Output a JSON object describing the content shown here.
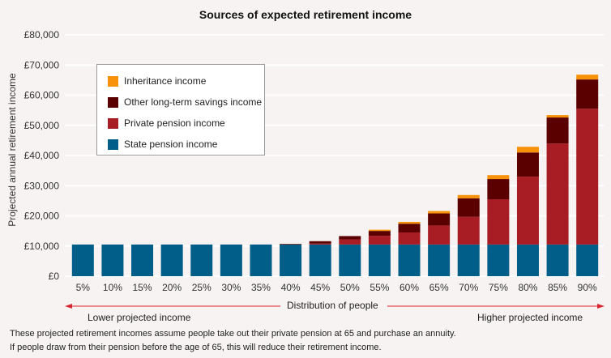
{
  "chart_data": {
    "type": "bar",
    "stacked": true,
    "title": "Sources of expected retirement income",
    "ylabel": "Projected annual retirement income",
    "xlabel": "Distribution of people",
    "ylim": [
      0,
      80000
    ],
    "yticks": [
      "£0",
      "£10,000",
      "£20,000",
      "£30,000",
      "£40,000",
      "£50,000",
      "£60,000",
      "£70,000",
      "£80,000"
    ],
    "categories": [
      "5%",
      "10%",
      "15%",
      "20%",
      "25%",
      "30%",
      "35%",
      "40%",
      "45%",
      "50%",
      "55%",
      "60%",
      "65%",
      "70%",
      "75%",
      "80%",
      "85%",
      "90%"
    ],
    "series": [
      {
        "name": "State pension income",
        "color": "#005e88",
        "values": [
          10500,
          10500,
          10500,
          10500,
          10500,
          10500,
          10500,
          10500,
          10500,
          10500,
          10500,
          10500,
          10500,
          10500,
          10500,
          10500,
          10500,
          10500
        ]
      },
      {
        "name": "Private pension income",
        "color": "#a81c24",
        "values": [
          0,
          0,
          0,
          0,
          0,
          0,
          0,
          0,
          300,
          1700,
          2900,
          4000,
          6300,
          9200,
          15000,
          22500,
          33500,
          45000
        ]
      },
      {
        "name": "Other long-term savings income",
        "color": "#5a0000",
        "values": [
          0,
          0,
          0,
          0,
          0,
          0,
          0,
          200,
          800,
          1100,
          1600,
          2900,
          4000,
          6100,
          6700,
          8000,
          8600,
          9700
        ]
      },
      {
        "name": "Inheritance income",
        "color": "#f7920a",
        "values": [
          0,
          0,
          0,
          0,
          0,
          0,
          0,
          0,
          0,
          0,
          400,
          600,
          800,
          1100,
          1300,
          1900,
          800,
          1600
        ]
      }
    ],
    "legend_order": [
      "Inheritance income",
      "Other long-term savings income",
      "Private pension income",
      "State pension income"
    ],
    "legend_position": "top-left",
    "grid": true
  },
  "axis_annotations": {
    "left": "Lower projected income",
    "right": "Higher projected income"
  },
  "notes": [
    "These projected retirement incomes assume people take out their private pension at 65 and purchase an annuity.",
    "If people draw from their pension before the age of 65, this will reduce their retirement income."
  ]
}
